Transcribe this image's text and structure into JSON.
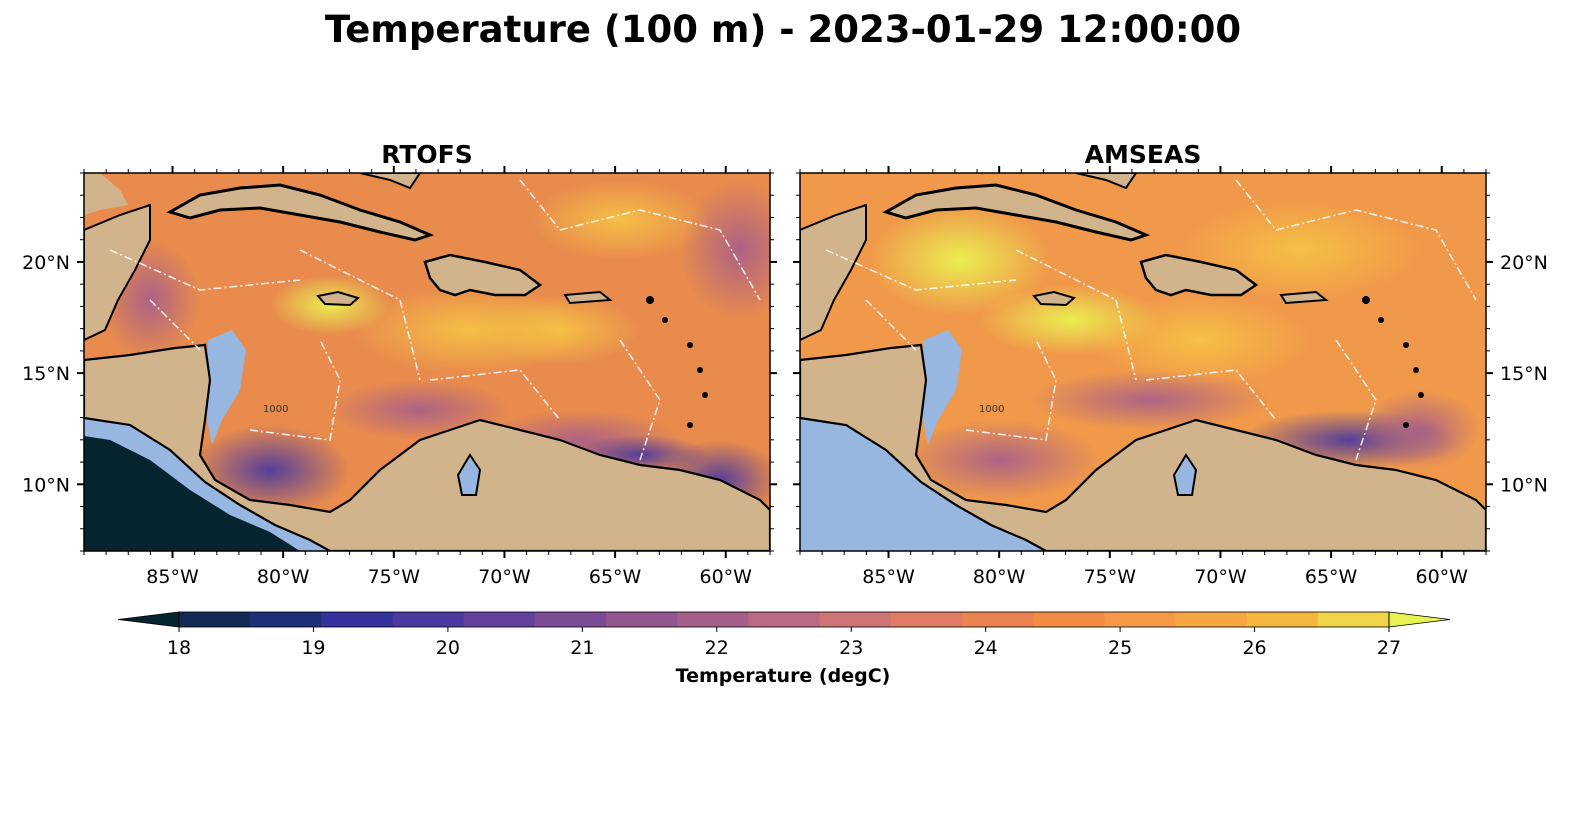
{
  "figure": {
    "title": "Temperature (100 m) - 2023-01-29 12:00:00"
  },
  "panels": [
    {
      "title": "RTOFS"
    },
    {
      "title": "AMSEAS"
    }
  ],
  "map": {
    "lon_range": [
      -89,
      -58
    ],
    "lat_range": [
      7,
      24
    ],
    "lon_ticks": [
      "85°W",
      "80°W",
      "75°W",
      "70°W",
      "65°W",
      "60°W"
    ],
    "lon_tick_values": [
      -85,
      -80,
      -75,
      -70,
      -65,
      -60
    ],
    "lat_ticks": [
      "20°N",
      "15°N",
      "10°N"
    ],
    "lat_tick_values": [
      20,
      15,
      10
    ],
    "bathymetry_contour_label": "1000",
    "colors": {
      "land": "#d2b48c",
      "shelf_water": "#97b6e0",
      "coastline": "#000000",
      "eez_lines": "#ffffff"
    }
  },
  "colorbar": {
    "label": "Temperature (degC)",
    "ticks": [
      "18",
      "19",
      "20",
      "21",
      "22",
      "23",
      "24",
      "25",
      "26",
      "27"
    ],
    "range": [
      18,
      27
    ],
    "colors": [
      "#062330",
      "#132a55",
      "#1e2f7a",
      "#33319b",
      "#4b38a0",
      "#63419c",
      "#7c4b95",
      "#915690",
      "#a4608a",
      "#b96983",
      "#ce7376",
      "#df7c63",
      "#ea8350",
      "#f28b45",
      "#f69845",
      "#f8a642",
      "#f6b73f",
      "#efd44a",
      "#e8f250"
    ]
  },
  "chart_data": [
    {
      "type": "heatmap",
      "title": "RTOFS",
      "variable": "Temperature (degC)",
      "x_ticks": [
        "85°W",
        "80°W",
        "75°W",
        "70°W",
        "65°W",
        "60°W"
      ],
      "y_ticks": [
        "20°N",
        "15°N",
        "10°N"
      ],
      "vmin": 18,
      "vmax": 27
    },
    {
      "type": "heatmap",
      "title": "AMSEAS",
      "variable": "Temperature (degC)",
      "x_ticks": [
        "85°W",
        "80°W",
        "75°W",
        "70°W",
        "65°W",
        "60°W"
      ],
      "y_ticks": [
        "20°N",
        "15°N",
        "10°N"
      ],
      "vmin": 18,
      "vmax": 27
    }
  ]
}
